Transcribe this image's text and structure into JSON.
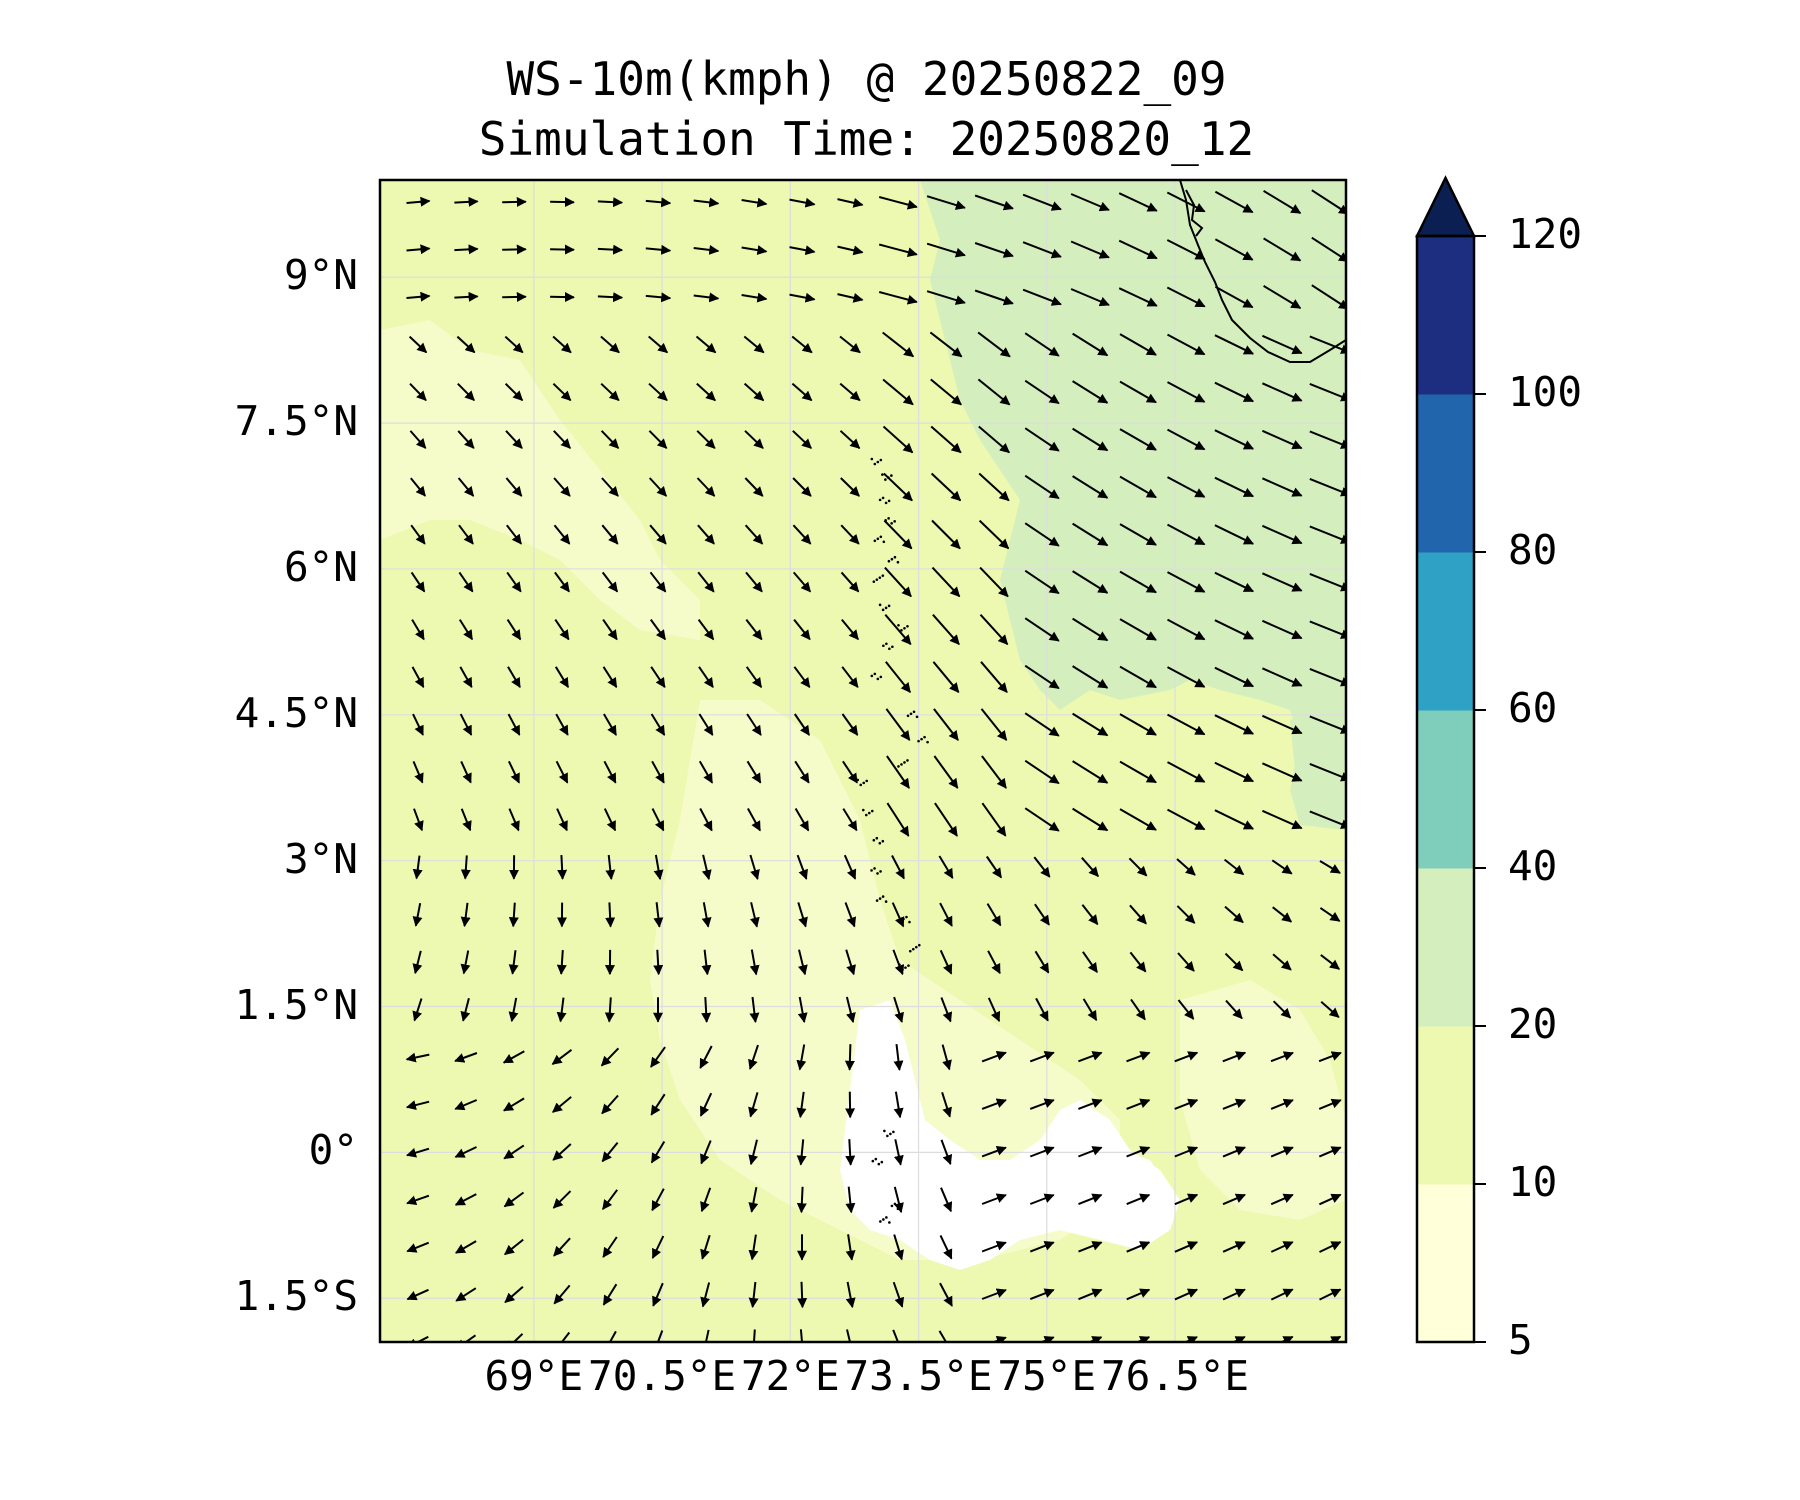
{
  "title": {
    "line1": "WS-10m(kmph) @ 20250822_09",
    "line2": "Simulation Time: 20250820_12"
  },
  "map": {
    "lon_range": [
      67.2,
      78.5
    ],
    "lat_range": [
      -1.95,
      10.0
    ],
    "lat_ticks": [
      {
        "value": 9.0,
        "label": "9°N"
      },
      {
        "value": 7.5,
        "label": "7.5°N"
      },
      {
        "value": 6.0,
        "label": "6°N"
      },
      {
        "value": 4.5,
        "label": "4.5°N"
      },
      {
        "value": 3.0,
        "label": "3°N"
      },
      {
        "value": 1.5,
        "label": "1.5°N"
      },
      {
        "value": 0.0,
        "label": "0°"
      },
      {
        "value": -1.5,
        "label": "1.5°S"
      }
    ],
    "lon_ticks": [
      {
        "value": 69.0,
        "label": "69°E"
      },
      {
        "value": 70.5,
        "label": "70.5°E"
      },
      {
        "value": 72.0,
        "label": "72°E"
      },
      {
        "value": 73.5,
        "label": "73.5°E"
      },
      {
        "value": 75.0,
        "label": "75°E"
      },
      {
        "value": 76.5,
        "label": "76.5°E"
      }
    ],
    "gridlines": true,
    "base_fill_color": "#edf8b1",
    "zones": [
      {
        "name": "north-east 20-40",
        "level": "20-40",
        "color": "#d4efbd"
      },
      {
        "name": "calm area",
        "level": "5-10",
        "color": "#ffffff"
      }
    ],
    "wind_vectors": "quiver field, roughly 10-25 kmph, NW flow in north turning S in west, E in south"
  },
  "colorbar": {
    "levels": [
      5,
      10,
      20,
      40,
      60,
      80,
      100,
      120
    ],
    "labels": [
      "5",
      "10",
      "20",
      "40",
      "60",
      "80",
      "100",
      "120"
    ],
    "colors": [
      "#ffffd9",
      "#edf8b1",
      "#d4efbd",
      "#7fcdbb",
      "#2ea1c4",
      "#2166ac",
      "#1d2d80",
      "#0b1f52"
    ],
    "extend": "max"
  }
}
